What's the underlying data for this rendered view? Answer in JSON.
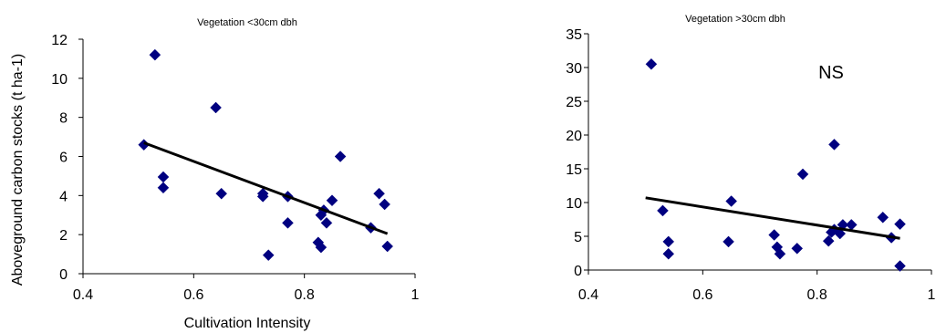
{
  "chart_data": [
    {
      "type": "scatter",
      "title": "Vegetation <30cm dbh",
      "xlabel": "Cultivation Intensity",
      "ylabel": "Aboveground carbon stocks (t ha-1)",
      "xlim": [
        0.4,
        1
      ],
      "ylim": [
        0,
        12
      ],
      "xticks": [
        "0.4",
        "0.6",
        "0.8",
        "1"
      ],
      "yticks": [
        "0",
        "2",
        "4",
        "6",
        "8",
        "10",
        "12"
      ],
      "marker_color": "#000080",
      "points": [
        {
          "x": 0.51,
          "y": 6.6
        },
        {
          "x": 0.53,
          "y": 11.2
        },
        {
          "x": 0.545,
          "y": 4.95
        },
        {
          "x": 0.545,
          "y": 4.4
        },
        {
          "x": 0.64,
          "y": 8.5
        },
        {
          "x": 0.65,
          "y": 4.1
        },
        {
          "x": 0.725,
          "y": 4.1
        },
        {
          "x": 0.725,
          "y": 3.95
        },
        {
          "x": 0.735,
          "y": 0.95
        },
        {
          "x": 0.77,
          "y": 3.95
        },
        {
          "x": 0.77,
          "y": 2.6
        },
        {
          "x": 0.825,
          "y": 1.6
        },
        {
          "x": 0.83,
          "y": 3.0
        },
        {
          "x": 0.83,
          "y": 1.35
        },
        {
          "x": 0.835,
          "y": 3.25
        },
        {
          "x": 0.84,
          "y": 2.6
        },
        {
          "x": 0.85,
          "y": 3.75
        },
        {
          "x": 0.865,
          "y": 6.0
        },
        {
          "x": 0.92,
          "y": 2.35
        },
        {
          "x": 0.935,
          "y": 4.1
        },
        {
          "x": 0.945,
          "y": 3.55
        },
        {
          "x": 0.95,
          "y": 1.4
        }
      ],
      "trendline": {
        "x": [
          0.51,
          0.95
        ],
        "y": [
          6.7,
          2.05
        ]
      }
    },
    {
      "type": "scatter",
      "title": "Vegetation >30cm dbh",
      "annotation": "NS",
      "xlim": [
        0.4,
        1
      ],
      "ylim": [
        0,
        35
      ],
      "xticks": [
        "0.4",
        "0.6",
        "0.8",
        "1"
      ],
      "yticks": [
        "0",
        "5",
        "10",
        "15",
        "20",
        "25",
        "30",
        "35"
      ],
      "marker_color": "#000080",
      "points": [
        {
          "x": 0.51,
          "y": 30.5
        },
        {
          "x": 0.53,
          "y": 8.8
        },
        {
          "x": 0.54,
          "y": 4.2
        },
        {
          "x": 0.54,
          "y": 2.4
        },
        {
          "x": 0.645,
          "y": 4.2
        },
        {
          "x": 0.65,
          "y": 10.2
        },
        {
          "x": 0.725,
          "y": 5.2
        },
        {
          "x": 0.73,
          "y": 3.4
        },
        {
          "x": 0.735,
          "y": 2.4
        },
        {
          "x": 0.765,
          "y": 3.2
        },
        {
          "x": 0.775,
          "y": 14.2
        },
        {
          "x": 0.82,
          "y": 4.3
        },
        {
          "x": 0.825,
          "y": 5.6
        },
        {
          "x": 0.83,
          "y": 18.6
        },
        {
          "x": 0.83,
          "y": 6.0
        },
        {
          "x": 0.84,
          "y": 5.4
        },
        {
          "x": 0.845,
          "y": 6.7
        },
        {
          "x": 0.86,
          "y": 6.7
        },
        {
          "x": 0.915,
          "y": 7.8
        },
        {
          "x": 0.93,
          "y": 4.8
        },
        {
          "x": 0.945,
          "y": 6.8
        },
        {
          "x": 0.945,
          "y": 0.6
        }
      ],
      "trendline": {
        "x": [
          0.5,
          0.945
        ],
        "y": [
          10.7,
          4.7
        ]
      }
    }
  ]
}
